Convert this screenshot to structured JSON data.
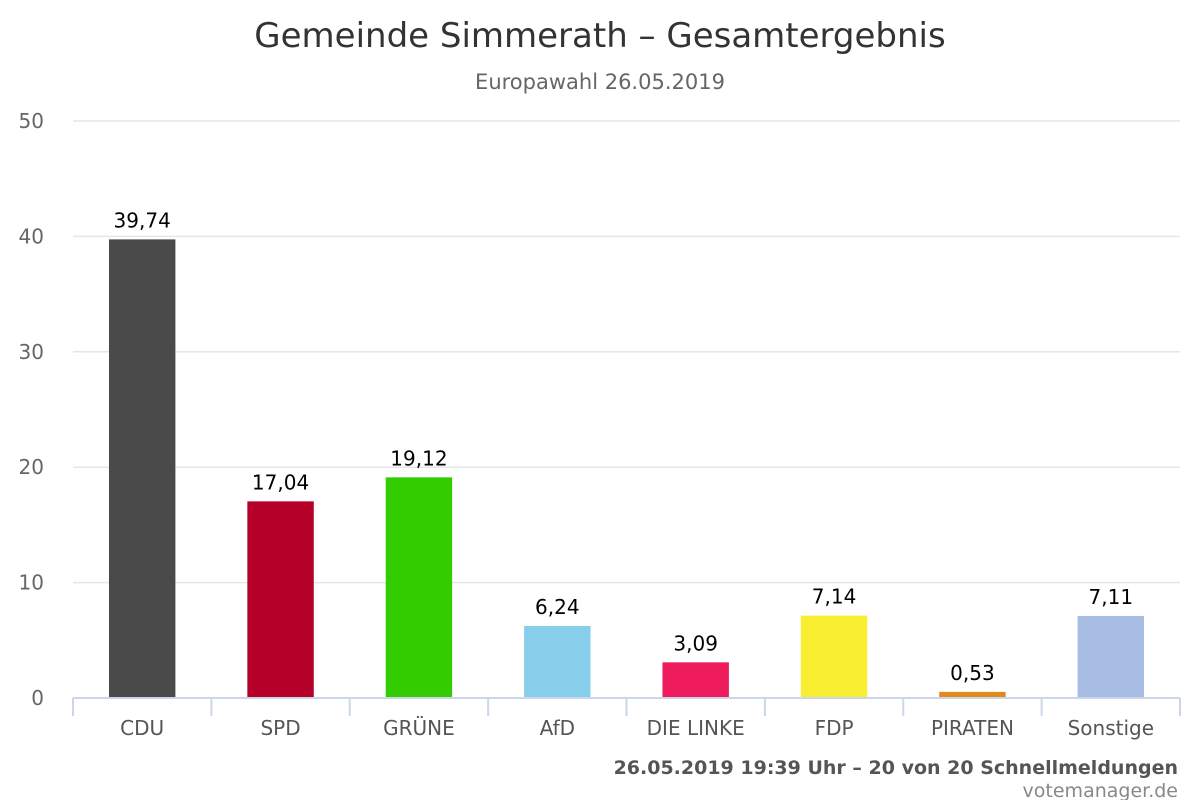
{
  "chart_data": {
    "type": "bar",
    "title": "Gemeinde Simmerath – Gesamtergebnis",
    "subtitle": "Europawahl 26.05.2019",
    "categories": [
      "CDU",
      "SPD",
      "GRÜNE",
      "AfD",
      "DIE LINKE",
      "FDP",
      "PIRATEN",
      "Sonstige"
    ],
    "values": [
      39.74,
      17.04,
      19.12,
      6.24,
      3.09,
      7.14,
      0.53,
      7.11
    ],
    "value_labels": [
      "39,74",
      "17,04",
      "19,12",
      "6,24",
      "3,09",
      "7,14",
      "0,53",
      "7,11"
    ],
    "colors": [
      "#4a4a4a",
      "#b5002a",
      "#33cc00",
      "#87ceeb",
      "#ee1c5c",
      "#faee33",
      "#e08a1e",
      "#a8bde3"
    ],
    "ylim": [
      0,
      50
    ],
    "yticks": [
      0,
      10,
      20,
      30,
      40,
      50
    ],
    "grid": true,
    "legend": "none"
  },
  "footer": {
    "status": "26.05.2019 19:39 Uhr – 20 von 20 Schnellmeldungen",
    "credit": "votemanager.de"
  }
}
